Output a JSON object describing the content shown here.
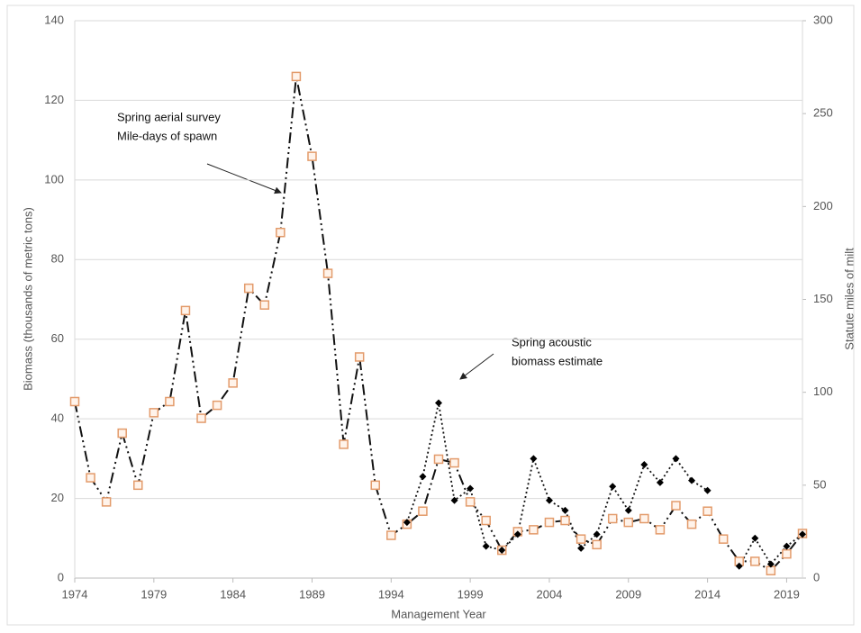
{
  "chart_data": {
    "type": "line",
    "xlabel": "Management Year",
    "ylabel": "Biomass (thousands of metric tons)",
    "y2label": "Statute miles of milt",
    "annotations": [
      {
        "lines": [
          "Spring aerial survey",
          "Mile-days of spawn"
        ]
      },
      {
        "lines": [
          "Spring acoustic",
          "biomass estimate"
        ]
      }
    ],
    "x": [
      1974,
      1975,
      1976,
      1977,
      1978,
      1979,
      1980,
      1981,
      1982,
      1983,
      1984,
      1985,
      1986,
      1987,
      1988,
      1989,
      1990,
      1991,
      1992,
      1993,
      1994,
      1995,
      1996,
      1997,
      1998,
      1999,
      2000,
      2001,
      2002,
      2003,
      2004,
      2005,
      2006,
      2007,
      2008,
      2009,
      2010,
      2011,
      2012,
      2013,
      2014,
      2015,
      2016,
      2017,
      2018,
      2019,
      2020
    ],
    "series": [
      {
        "color": "#e39b6b",
        "axis": "y2",
        "marker": "square",
        "values": [
          95,
          54,
          41,
          78,
          50,
          89,
          95,
          144,
          86,
          93,
          105,
          156,
          147,
          186,
          270,
          227,
          164,
          72,
          119,
          50,
          23,
          29,
          36,
          64,
          62,
          41,
          31,
          15,
          25,
          26,
          30,
          31,
          21,
          18,
          32,
          30,
          32,
          26,
          39,
          29,
          36,
          21,
          9,
          9,
          4,
          13,
          24
        ]
      },
      {
        "color": "#000000",
        "marker": "diamond",
        "values": [
          null,
          null,
          null,
          null,
          null,
          null,
          null,
          null,
          null,
          null,
          null,
          null,
          null,
          null,
          null,
          null,
          null,
          null,
          null,
          null,
          null,
          14,
          25.5,
          44,
          19.5,
          22.5,
          8,
          7,
          11,
          30,
          19.5,
          17,
          7.5,
          11,
          23,
          17,
          28.5,
          24,
          30,
          24.5,
          22,
          null,
          3,
          10,
          3.5,
          8,
          11
        ]
      }
    ],
    "xlim": [
      1974,
      2020
    ],
    "xticks": [
      1974,
      1979,
      1984,
      1989,
      1994,
      1999,
      2004,
      2009,
      2014,
      2019
    ],
    "ylim": [
      0,
      140
    ],
    "yticks": [
      0,
      20,
      40,
      60,
      80,
      100,
      120,
      140
    ],
    "y2lim": [
      0,
      300
    ],
    "y2ticks": [
      0,
      50,
      100,
      150,
      200,
      250,
      300
    ],
    "grid": true
  }
}
